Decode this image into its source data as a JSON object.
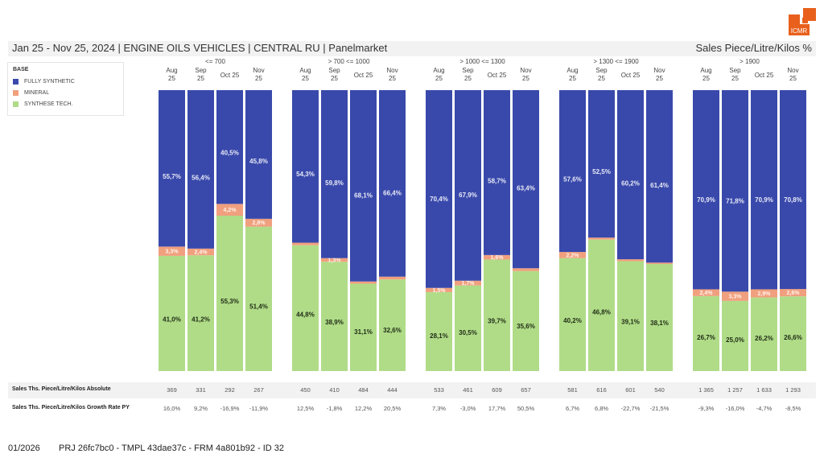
{
  "logo": {
    "text": "ICMR",
    "color": "#e8601c"
  },
  "header": {
    "title": "Jan 25 - Nov 25, 2024 | ENGINE OILS VEHICLES | CENTRAL RU | Panelmarket",
    "measure": "Sales Piece/Litre/Kilos %"
  },
  "legend": {
    "title": "BASE",
    "items": [
      {
        "label": "FULLY SYNTHETIC",
        "color": "#3949ab"
      },
      {
        "label": "MINERAL",
        "color": "#f0a07e"
      },
      {
        "label": "SYNTHESE TECH.",
        "color": "#b0dc88"
      }
    ]
  },
  "chart_data": {
    "type": "bar",
    "stacked": true,
    "normalized": true,
    "title": "Jan 25 - Nov 25, 2024 | ENGINE OILS VEHICLES | CENTRAL RU | Panelmarket",
    "ylabel": "Sales Piece/Litre/Kilos %",
    "ylim": [
      0,
      100
    ],
    "legend_position": "top-left",
    "period_labels": [
      [
        "Aug",
        "25"
      ],
      [
        "Sep",
        "25"
      ],
      [
        "Oct 25"
      ],
      [
        "Nov",
        "25"
      ]
    ],
    "groups": [
      {
        "name": "<= 700",
        "series": {
          "FULLY SYNTHETIC": [
            55.7,
            56.4,
            40.5,
            45.8
          ],
          "MINERAL": [
            3.3,
            2.4,
            4.2,
            2.8
          ],
          "SYNTHESE TECH.": [
            41.0,
            41.2,
            55.3,
            51.4
          ]
        },
        "mineral_label_shown": [
          true,
          true,
          true,
          true
        ]
      },
      {
        "name": "> 700 <= 1000",
        "series": {
          "FULLY SYNTHETIC": [
            54.3,
            59.8,
            68.1,
            66.4
          ],
          "MINERAL": [
            0.9,
            1.3,
            0.8,
            1.0
          ],
          "SYNTHESE TECH.": [
            44.8,
            38.9,
            31.1,
            32.6
          ]
        },
        "mineral_label_shown": [
          false,
          true,
          false,
          false
        ]
      },
      {
        "name": "> 1000 <= 1300",
        "series": {
          "FULLY SYNTHETIC": [
            70.4,
            67.9,
            58.7,
            63.4
          ],
          "MINERAL": [
            1.5,
            1.7,
            1.6,
            1.0
          ],
          "SYNTHESE TECH.": [
            28.1,
            30.5,
            39.7,
            35.6
          ]
        },
        "mineral_label_shown": [
          true,
          true,
          true,
          false
        ]
      },
      {
        "name": "> 1300 <= 1900",
        "series": {
          "FULLY SYNTHETIC": [
            57.6,
            52.5,
            60.2,
            61.4
          ],
          "MINERAL": [
            2.2,
            0.7,
            0.7,
            0.5
          ],
          "SYNTHESE TECH.": [
            40.2,
            46.8,
            39.1,
            38.1
          ]
        },
        "mineral_label_shown": [
          true,
          false,
          false,
          false
        ]
      },
      {
        "name": "> 1900",
        "series": {
          "FULLY SYNTHETIC": [
            70.9,
            71.8,
            70.9,
            70.8
          ],
          "MINERAL": [
            2.4,
            3.3,
            2.9,
            2.6
          ],
          "SYNTHESE TECH.": [
            26.7,
            25.0,
            26.2,
            26.6
          ]
        },
        "mineral_label_shown": [
          true,
          true,
          true,
          true
        ]
      }
    ]
  },
  "table": {
    "rows": [
      {
        "label": "Sales Ths. Piece/Litre/Kilos Absolute",
        "values": [
          [
            "369",
            "331",
            "292",
            "267"
          ],
          [
            "450",
            "410",
            "484",
            "444"
          ],
          [
            "533",
            "461",
            "609",
            "657"
          ],
          [
            "581",
            "616",
            "601",
            "540"
          ],
          [
            "1 365",
            "1 257",
            "1 633",
            "1 293"
          ]
        ]
      },
      {
        "label": "Sales Ths. Piece/Litre/Kilos Growth Rate PY",
        "values": [
          [
            "16,0%",
            "9,2%",
            "-16,9%",
            "-11,9%"
          ],
          [
            "12,5%",
            "-1,8%",
            "12,2%",
            "20,5%"
          ],
          [
            "7,3%",
            "-3,0%",
            "17,7%",
            "50,5%"
          ],
          [
            "6,7%",
            "6,8%",
            "-22,7%",
            "-21,5%"
          ],
          [
            "-9,3%",
            "-16,0%",
            "-4,7%",
            "-8,5%"
          ]
        ]
      }
    ]
  },
  "footer": {
    "date": "01/2026",
    "id": "PRJ 26fc7bc0 - TMPL 43dae37c - FRM 4a801b92 - ID 32"
  }
}
